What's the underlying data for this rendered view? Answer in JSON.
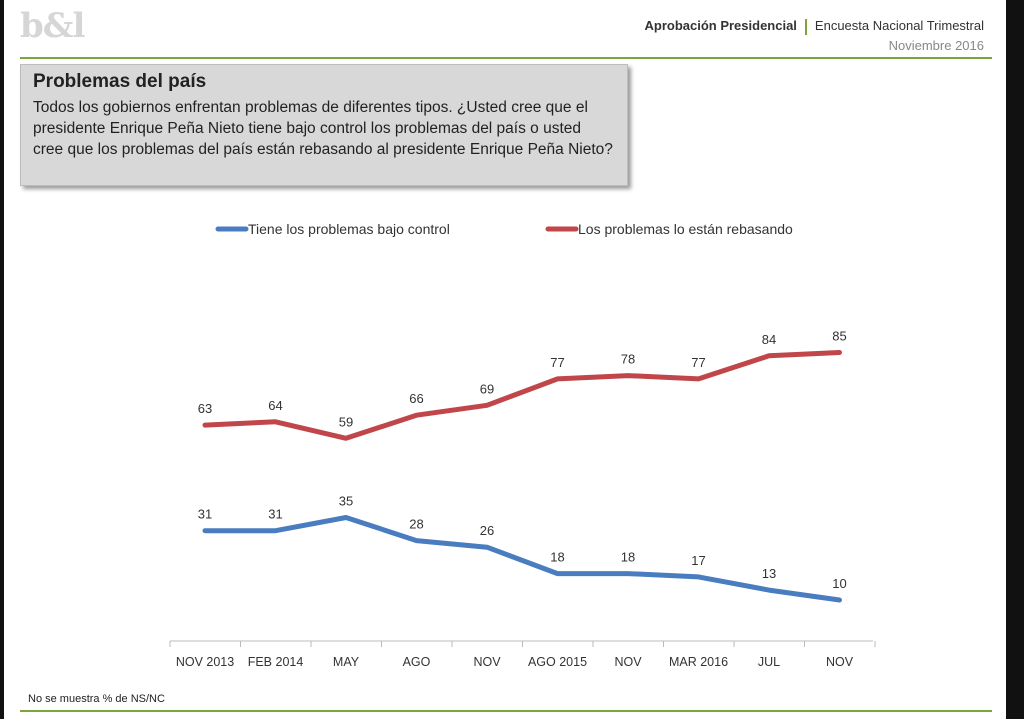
{
  "header": {
    "logo": "b&l",
    "title_bold": "Aprobación Presidencial",
    "title_rest": "Encuesta Nacional Trimestral",
    "date": "Noviembre 2016"
  },
  "question": {
    "title": "Problemas del país",
    "text": "Todos los gobiernos enfrentan problemas de diferentes tipos. ¿Usted cree que el presidente Enrique Peña Nieto tiene bajo control los problemas del país o usted cree que los problemas del país están rebasando al presidente Enrique Peña Nieto?"
  },
  "footnote": "No se muestra % de NS/NC",
  "colors": {
    "accent": "#7aa63a",
    "blue": "#4a7cc0",
    "red": "#c0464a"
  },
  "chart_data": {
    "type": "line",
    "categories": [
      "NOV 2013",
      "FEB 2014",
      "MAY",
      "AGO",
      "NOV",
      "AGO 2015",
      "NOV",
      "MAR 2016",
      "JUL",
      "NOV"
    ],
    "series": [
      {
        "name": "Tiene los problemas bajo control",
        "color": "#4a7cc0",
        "values": [
          31,
          31,
          35,
          28,
          26,
          18,
          18,
          17,
          13,
          10
        ]
      },
      {
        "name": "Los problemas lo están rebasando",
        "color": "#c0464a",
        "values": [
          63,
          64,
          59,
          66,
          69,
          77,
          78,
          77,
          84,
          85
        ]
      }
    ],
    "legend_position": "top",
    "grid": false,
    "ylim": [
      0,
      100
    ]
  }
}
